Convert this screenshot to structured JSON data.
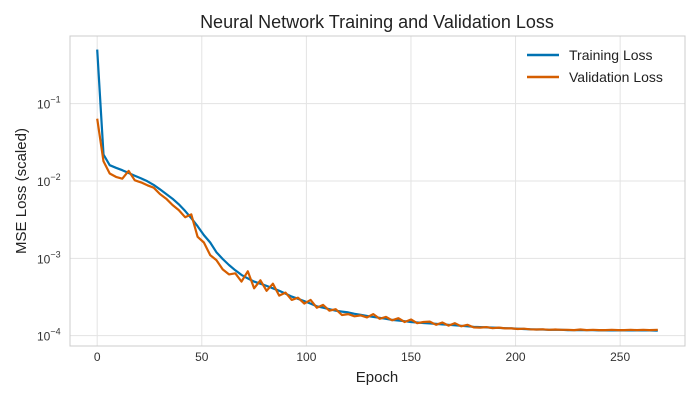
{
  "chart_data": {
    "type": "line",
    "title": "Neural Network Training and Validation Loss",
    "xlabel": "Epoch",
    "ylabel": "MSE Loss (scaled)",
    "xlim": [
      -13,
      281
    ],
    "ylim": [
      7.35e-05,
      0.75
    ],
    "yscale": "log",
    "grid": true,
    "legend_position": "top-right",
    "x_ticks": [
      0,
      50,
      100,
      150,
      200,
      250
    ],
    "x_tick_labels": [
      "0",
      "50",
      "100",
      "150",
      "200",
      "250"
    ],
    "y_ticks": [
      0.1,
      0.01,
      0.001,
      0.0001
    ],
    "y_tick_labels": [
      [
        "10",
        "−1"
      ],
      [
        "10",
        "−2"
      ],
      [
        "10",
        "−3"
      ],
      [
        "10",
        "−4"
      ]
    ],
    "x": [
      0,
      3,
      6,
      9,
      12,
      15,
      18,
      21,
      24,
      27,
      30,
      33,
      36,
      39,
      42,
      45,
      48,
      51,
      54,
      57,
      60,
      63,
      66,
      69,
      72,
      75,
      78,
      81,
      84,
      87,
      90,
      93,
      96,
      99,
      102,
      105,
      108,
      111,
      114,
      117,
      120,
      123,
      126,
      129,
      132,
      135,
      138,
      141,
      144,
      147,
      150,
      153,
      156,
      159,
      162,
      165,
      168,
      171,
      174,
      177,
      180,
      183,
      186,
      189,
      192,
      195,
      198,
      201,
      204,
      207,
      210,
      213,
      216,
      219,
      222,
      225,
      228,
      231,
      234,
      237,
      240,
      243,
      246,
      249,
      252,
      255,
      258,
      261,
      264,
      268
    ],
    "series": [
      {
        "name": "Training Loss",
        "color": "#0072B2",
        "values": [
          0.5,
          0.022,
          0.016,
          0.0148,
          0.0138,
          0.0127,
          0.0117,
          0.0108,
          0.0099,
          0.0089,
          0.0078,
          0.0068,
          0.0059,
          0.005,
          0.0041,
          0.0033,
          0.0026,
          0.002,
          0.0016,
          0.0012,
          0.00098,
          0.00082,
          0.0007,
          0.00061,
          0.00055,
          0.0005,
          0.00047,
          0.00044,
          0.00041,
          0.00038,
          0.00035,
          0.00032,
          0.0003,
          0.00028,
          0.00026,
          0.00024,
          0.00023,
          0.00022,
          0.00021,
          0.000205,
          0.0002,
          0.000192,
          0.000186,
          0.00018,
          0.000175,
          0.00017,
          0.000165,
          0.00016,
          0.000157,
          0.000154,
          0.00015,
          0.000148,
          0.000146,
          0.000144,
          0.000142,
          0.00014,
          0.000138,
          0.000136,
          0.000134,
          0.000132,
          0.00013,
          0.000129,
          0.000128,
          0.000127,
          0.000126,
          0.000125,
          0.000124,
          0.000123,
          0.000122,
          0.000121,
          0.00012,
          0.00012,
          0.000119,
          0.000119,
          0.000119,
          0.000118,
          0.000118,
          0.000118,
          0.000118,
          0.000118,
          0.000117,
          0.000117,
          0.000117,
          0.000117,
          0.000117,
          0.000117,
          0.000117,
          0.000117,
          0.000117,
          0.000116
        ]
      },
      {
        "name": "Validation Loss",
        "color": "#D55E00",
        "values": [
          0.064,
          0.018,
          0.0125,
          0.0113,
          0.0107,
          0.0135,
          0.0102,
          0.0096,
          0.0088,
          0.0082,
          0.0068,
          0.0059,
          0.0049,
          0.0042,
          0.0034,
          0.0037,
          0.0019,
          0.0016,
          0.0011,
          0.00095,
          0.00072,
          0.00062,
          0.00064,
          0.0005,
          0.00068,
          0.00041,
          0.00052,
          0.00038,
          0.00047,
          0.00033,
          0.00036,
          0.00029,
          0.00031,
          0.00026,
          0.00029,
          0.00023,
          0.00025,
          0.00021,
          0.00022,
          0.000185,
          0.00019,
          0.000178,
          0.000183,
          0.000172,
          0.00019,
          0.000165,
          0.000175,
          0.000158,
          0.000168,
          0.00015,
          0.000162,
          0.000145,
          0.00015,
          0.000152,
          0.000138,
          0.000148,
          0.000135,
          0.000145,
          0.000132,
          0.000138,
          0.000128,
          0.000127,
          0.000129,
          0.000125,
          0.000127,
          0.000124,
          0.000124,
          0.000122,
          0.000123,
          0.000121,
          0.00012,
          0.000121,
          0.000119,
          0.00012,
          0.000119,
          0.000119,
          0.000118,
          0.00012,
          0.000118,
          0.000119,
          0.000118,
          0.000118,
          0.000119,
          0.000118,
          0.000118,
          0.000119,
          0.000118,
          0.000119,
          0.000118,
          0.000119
        ]
      }
    ]
  }
}
